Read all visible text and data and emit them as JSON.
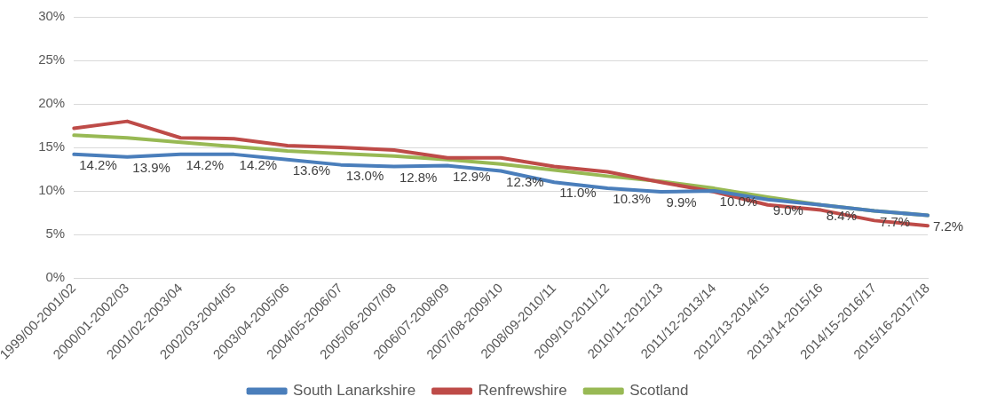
{
  "chart_data": {
    "type": "line",
    "categories": [
      "1999/00-2001/02",
      "2000/01-2002/03",
      "2001/02-2003/04",
      "2002/03-2004/05",
      "2003/04-2005/06",
      "2004/05-2006/07",
      "2005/06-2007/08",
      "2006/07-2008/09",
      "2007/08-2009/10",
      "2008/09-2010/11",
      "2009/10-2011/12",
      "2010/11-2012/13",
      "2011/12-2013/14",
      "2012/13-2014/15",
      "2013/14-2015/16",
      "2014/15-2016/17",
      "2015/16-2017/18"
    ],
    "series": [
      {
        "name": "South Lanarkshire",
        "color": "#4a7ebb",
        "values": [
          14.2,
          13.9,
          14.2,
          14.2,
          13.6,
          13.0,
          12.8,
          12.9,
          12.3,
          11.0,
          10.3,
          9.9,
          10.0,
          9.0,
          8.4,
          7.7,
          7.2
        ],
        "value_labels": [
          "14.2%",
          "13.9%",
          "14.2%",
          "14.2%",
          "13.6%",
          "13.0%",
          "12.8%",
          "12.9%",
          "12.3%",
          "11.0%",
          "10.3%",
          "9.9%",
          "10.0%",
          "9.0%",
          "8.4%",
          "7.7%",
          "7.2%"
        ]
      },
      {
        "name": "Renfrewshire",
        "color": "#be4b48",
        "values": [
          17.2,
          18.0,
          16.1,
          16.0,
          15.2,
          15.0,
          14.7,
          13.8,
          13.8,
          12.8,
          12.2,
          11.0,
          9.9,
          8.4,
          7.8,
          6.6,
          6.0
        ]
      },
      {
        "name": "Scotland",
        "color": "#98b954",
        "values": [
          16.4,
          16.1,
          15.6,
          15.1,
          14.6,
          14.3,
          14.0,
          13.6,
          13.1,
          12.4,
          11.7,
          11.1,
          10.3,
          9.3,
          8.4,
          7.7,
          7.2
        ]
      }
    ],
    "ylim": [
      0,
      30
    ],
    "yticks": [
      {
        "value": 0,
        "label": "0%"
      },
      {
        "value": 5,
        "label": "5%"
      },
      {
        "value": 10,
        "label": "10%"
      },
      {
        "value": 15,
        "label": "15%"
      },
      {
        "value": 20,
        "label": "20%"
      },
      {
        "value": 25,
        "label": "25%"
      },
      {
        "value": 30,
        "label": "30%"
      }
    ],
    "grid": "y",
    "legend": "bottom",
    "marker": "none",
    "line_style": "solid"
  }
}
